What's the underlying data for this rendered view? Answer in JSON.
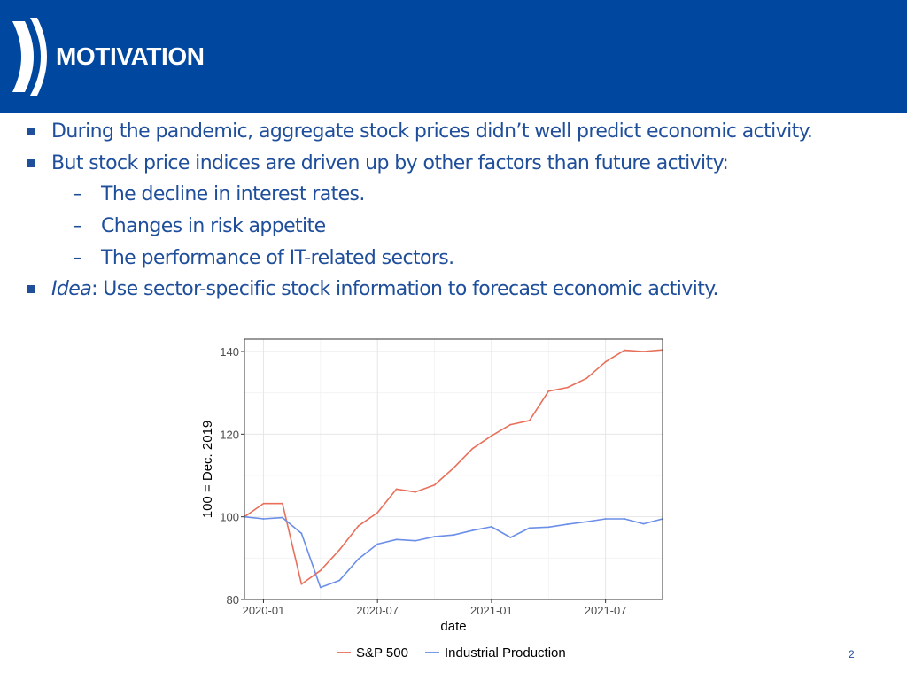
{
  "slide": {
    "title": "MOTIVATION",
    "page_number": "2"
  },
  "bullets": [
    {
      "level": 1,
      "text": "During the pandemic, aggregate stock prices didn’t well predict economic activity."
    },
    {
      "level": 1,
      "text": "But stock price indices are driven up by other factors than future activity:"
    },
    {
      "level": 2,
      "text": "The decline in interest rates."
    },
    {
      "level": 2,
      "text": "Changes in risk appetite"
    },
    {
      "level": 2,
      "text": "The performance of IT-related sectors."
    },
    {
      "level": 1,
      "emphasis": "Idea",
      "text": ": Use sector-specific stock information to forecast economic activity."
    }
  ],
  "sub_bullet_marker": "–",
  "chart_data": {
    "type": "line",
    "x": [
      "2019-12",
      "2020-01",
      "2020-02",
      "2020-03",
      "2020-04",
      "2020-05",
      "2020-06",
      "2020-07",
      "2020-08",
      "2020-09",
      "2020-10",
      "2020-11",
      "2020-12",
      "2021-01",
      "2021-02",
      "2021-03",
      "2021-04",
      "2021-05",
      "2021-06",
      "2021-07",
      "2021-08",
      "2021-09",
      "2021-10"
    ],
    "series": [
      {
        "name": "S&P 500",
        "color": "#e8705a",
        "values": [
          100.0,
          103.2,
          103.2,
          83.7,
          87.0,
          92.0,
          97.8,
          101.0,
          106.7,
          106.0,
          107.7,
          111.8,
          116.5,
          119.6,
          122.3,
          123.3,
          130.4,
          131.3,
          133.5,
          137.5,
          140.3,
          140.0,
          140.4
        ]
      },
      {
        "name": "Industrial Production",
        "color": "#6b8ee8",
        "values": [
          100.0,
          99.5,
          99.8,
          96.0,
          82.9,
          84.6,
          89.8,
          93.4,
          94.5,
          94.2,
          95.2,
          95.6,
          96.7,
          97.6,
          95.0,
          97.3,
          97.5,
          98.2,
          98.8,
          99.5,
          99.5,
          98.3,
          99.5
        ]
      }
    ],
    "title": "",
    "xlabel": "date",
    "ylabel": "100 = Dec. 2019",
    "ylim": [
      80,
      143
    ],
    "xticks": [
      {
        "at": "2020-01",
        "label": "2020-01"
      },
      {
        "at": "2020-07",
        "label": "2020-07"
      },
      {
        "at": "2021-01",
        "label": "2021-01"
      },
      {
        "at": "2021-07",
        "label": "2021-07"
      }
    ],
    "yticks": [
      80,
      100,
      120,
      140
    ],
    "grid": true,
    "legend_position": "bottom"
  }
}
